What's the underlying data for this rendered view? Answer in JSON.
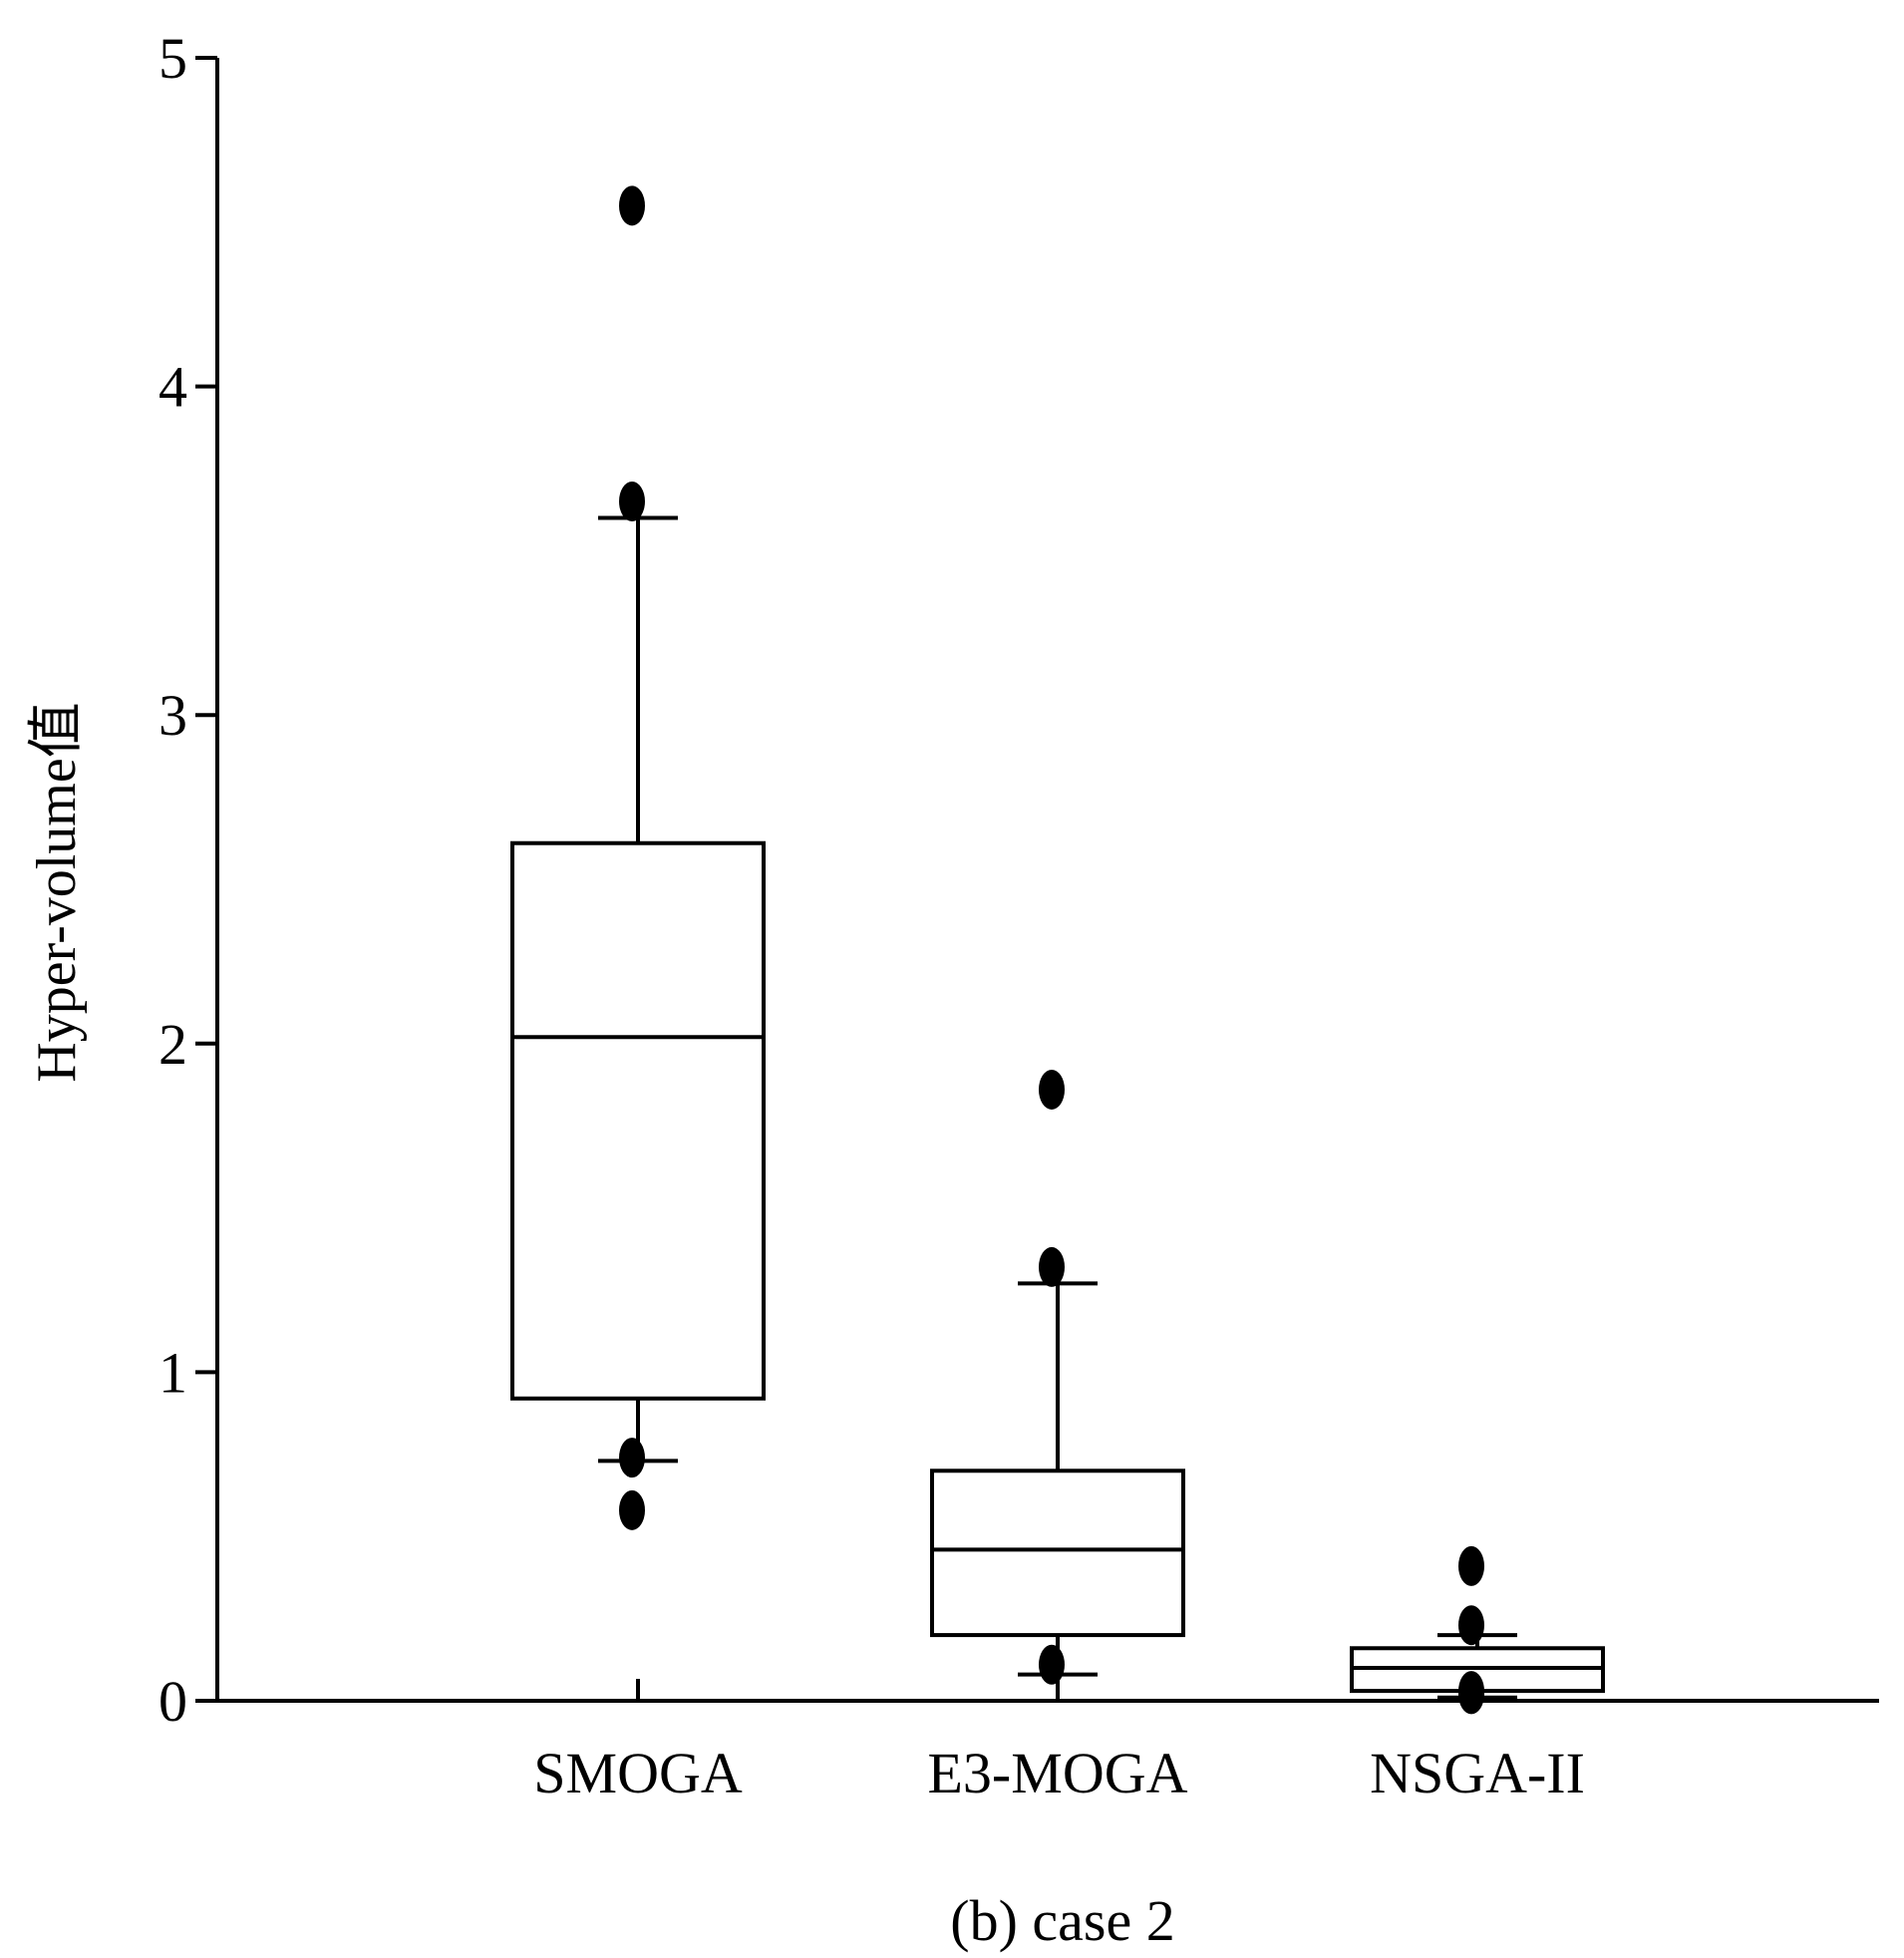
{
  "chart_data": {
    "type": "box",
    "title": "",
    "caption": "(b) case 2",
    "xlabel": "",
    "ylabel": "Hyper-volume值",
    "ylim": [
      0,
      5
    ],
    "yticks": [
      "0",
      "1",
      "2",
      "3",
      "4",
      "5"
    ],
    "categories": [
      "SMOGA",
      "E3-MOGA",
      "NSGA-II"
    ],
    "boxes": [
      {
        "name": "SMOGA",
        "whisker_low": 0.73,
        "q1": 0.92,
        "median": 2.02,
        "q3": 2.61,
        "whisker_high": 3.6,
        "outliers": [
          4.55,
          3.65,
          0.74,
          0.58
        ]
      },
      {
        "name": "E3-MOGA",
        "whisker_low": 0.08,
        "q1": 0.2,
        "median": 0.46,
        "q3": 0.7,
        "whisker_high": 1.27,
        "outliers": [
          1.86,
          1.32,
          0.11
        ]
      },
      {
        "name": "NSGA-II",
        "whisker_low": 0.01,
        "q1": 0.03,
        "median": 0.1,
        "q3": 0.16,
        "whisker_high": 0.2,
        "outliers": [
          0.41,
          0.23,
          0.03,
          0.02
        ]
      }
    ]
  }
}
